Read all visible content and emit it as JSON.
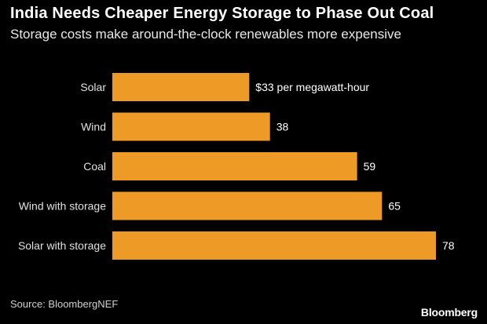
{
  "title": "India Needs Cheaper Energy Storage to Phase Out Coal",
  "subtitle": "Storage costs make around-the-clock renewables more expensive",
  "source": "Source: BloombergNEF",
  "brand": "Bloomberg",
  "colors": {
    "bar": "#EE9A27",
    "background": "#000000",
    "text": "#FFFFFF"
  },
  "chart_data": {
    "type": "bar",
    "orientation": "horizontal",
    "categories": [
      "Solar",
      "Wind",
      "Coal",
      "Wind with storage",
      "Solar with storage"
    ],
    "values": [
      33,
      38,
      59,
      65,
      78
    ],
    "value_labels": [
      "$33 per megawatt-hour",
      "38",
      "59",
      "65",
      "78"
    ],
    "xlim": [
      0,
      78
    ]
  }
}
